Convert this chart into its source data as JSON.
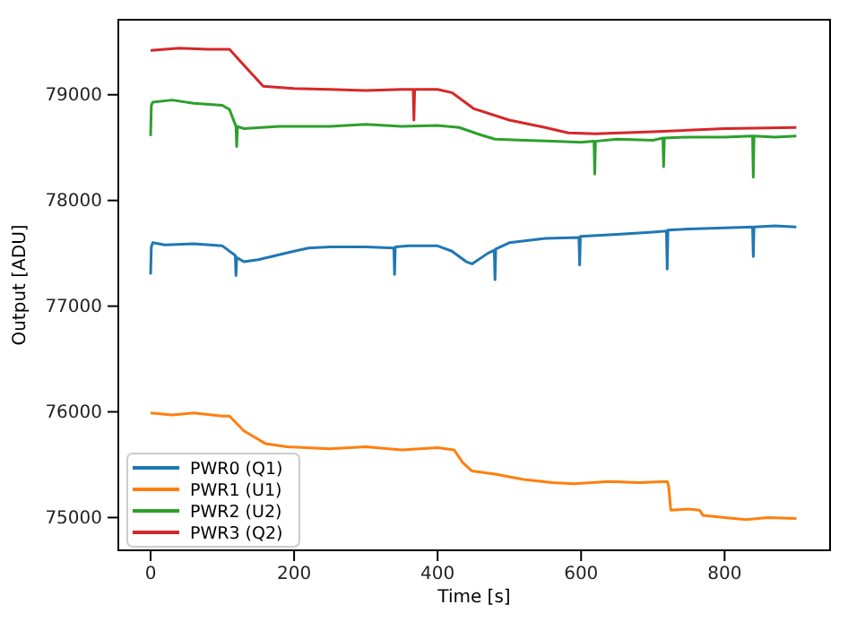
{
  "chart_data": {
    "type": "line",
    "xlabel": "Time [s]",
    "ylabel": "Output [ADU]",
    "xlim": [
      -45,
      947
    ],
    "ylim": [
      74690,
      79710
    ],
    "xticks": [
      0,
      200,
      400,
      600,
      800
    ],
    "yticks": [
      75000,
      76000,
      77000,
      78000,
      79000
    ],
    "legend": "bottom left",
    "grid": false,
    "marker": "none",
    "line_style": "solid",
    "series": [
      {
        "name": "PWR0 (Q1)",
        "color": "#1f77b4",
        "x": [
          0,
          1,
          3,
          20,
          60,
          100,
          118,
          119,
          120,
          130,
          150,
          200,
          220,
          250,
          300,
          339,
          340,
          341,
          360,
          400,
          420,
          440,
          448,
          470,
          479,
          480,
          481,
          500,
          550,
          597,
          598,
          599,
          650,
          700,
          719,
          720,
          721,
          750,
          800,
          839,
          840,
          841,
          870,
          900
        ],
        "values": [
          77300,
          77560,
          77600,
          77580,
          77590,
          77570,
          77480,
          77290,
          77460,
          77420,
          77440,
          77520,
          77550,
          77560,
          77560,
          77550,
          77300,
          77560,
          77570,
          77570,
          77520,
          77420,
          77400,
          77500,
          77530,
          77250,
          77540,
          77600,
          77640,
          77650,
          77390,
          77660,
          77680,
          77700,
          77710,
          77350,
          77720,
          77730,
          77740,
          77750,
          77470,
          77750,
          77760,
          77750
        ]
      },
      {
        "name": "PWR1 (U1)",
        "color": "#ff7f0e",
        "x": [
          0,
          30,
          60,
          100,
          110,
          130,
          160,
          190,
          250,
          300,
          350,
          400,
          423,
          435,
          448,
          480,
          520,
          560,
          590,
          640,
          680,
          720,
          722,
          725,
          750,
          765,
          770,
          800,
          830,
          860,
          900
        ],
        "values": [
          75990,
          75970,
          75990,
          75960,
          75960,
          75820,
          75700,
          75670,
          75650,
          75670,
          75640,
          75660,
          75640,
          75520,
          75440,
          75410,
          75360,
          75330,
          75320,
          75340,
          75330,
          75340,
          75300,
          75070,
          75080,
          75070,
          75020,
          75000,
          74980,
          75000,
          74990
        ]
      },
      {
        "name": "PWR2 (U2)",
        "color": "#2ca02c",
        "x": [
          0,
          1,
          3,
          30,
          60,
          100,
          110,
          119,
          120,
          121,
          130,
          180,
          250,
          300,
          350,
          400,
          430,
          460,
          480,
          520,
          560,
          600,
          618,
          619,
          620,
          650,
          700,
          714,
          715,
          716,
          750,
          800,
          839,
          840,
          841,
          870,
          900
        ],
        "values": [
          78610,
          78900,
          78930,
          78950,
          78920,
          78900,
          78860,
          78700,
          78510,
          78700,
          78680,
          78700,
          78700,
          78720,
          78700,
          78710,
          78690,
          78620,
          78580,
          78570,
          78560,
          78550,
          78560,
          78250,
          78560,
          78580,
          78570,
          78590,
          78320,
          78590,
          78600,
          78600,
          78610,
          78220,
          78610,
          78600,
          78610
        ]
      },
      {
        "name": "PWR3 (Q2)",
        "color": "#d62728",
        "x": [
          0,
          40,
          80,
          110,
          130,
          157,
          200,
          250,
          300,
          350,
          366,
          367,
          368,
          400,
          420,
          450,
          500,
          550,
          582,
          620,
          700,
          800,
          900
        ],
        "values": [
          79420,
          79440,
          79430,
          79430,
          79280,
          79080,
          79060,
          79050,
          79040,
          79050,
          79050,
          78760,
          79050,
          79050,
          79020,
          78870,
          78760,
          78690,
          78640,
          78630,
          78650,
          78680,
          78690
        ]
      }
    ]
  }
}
